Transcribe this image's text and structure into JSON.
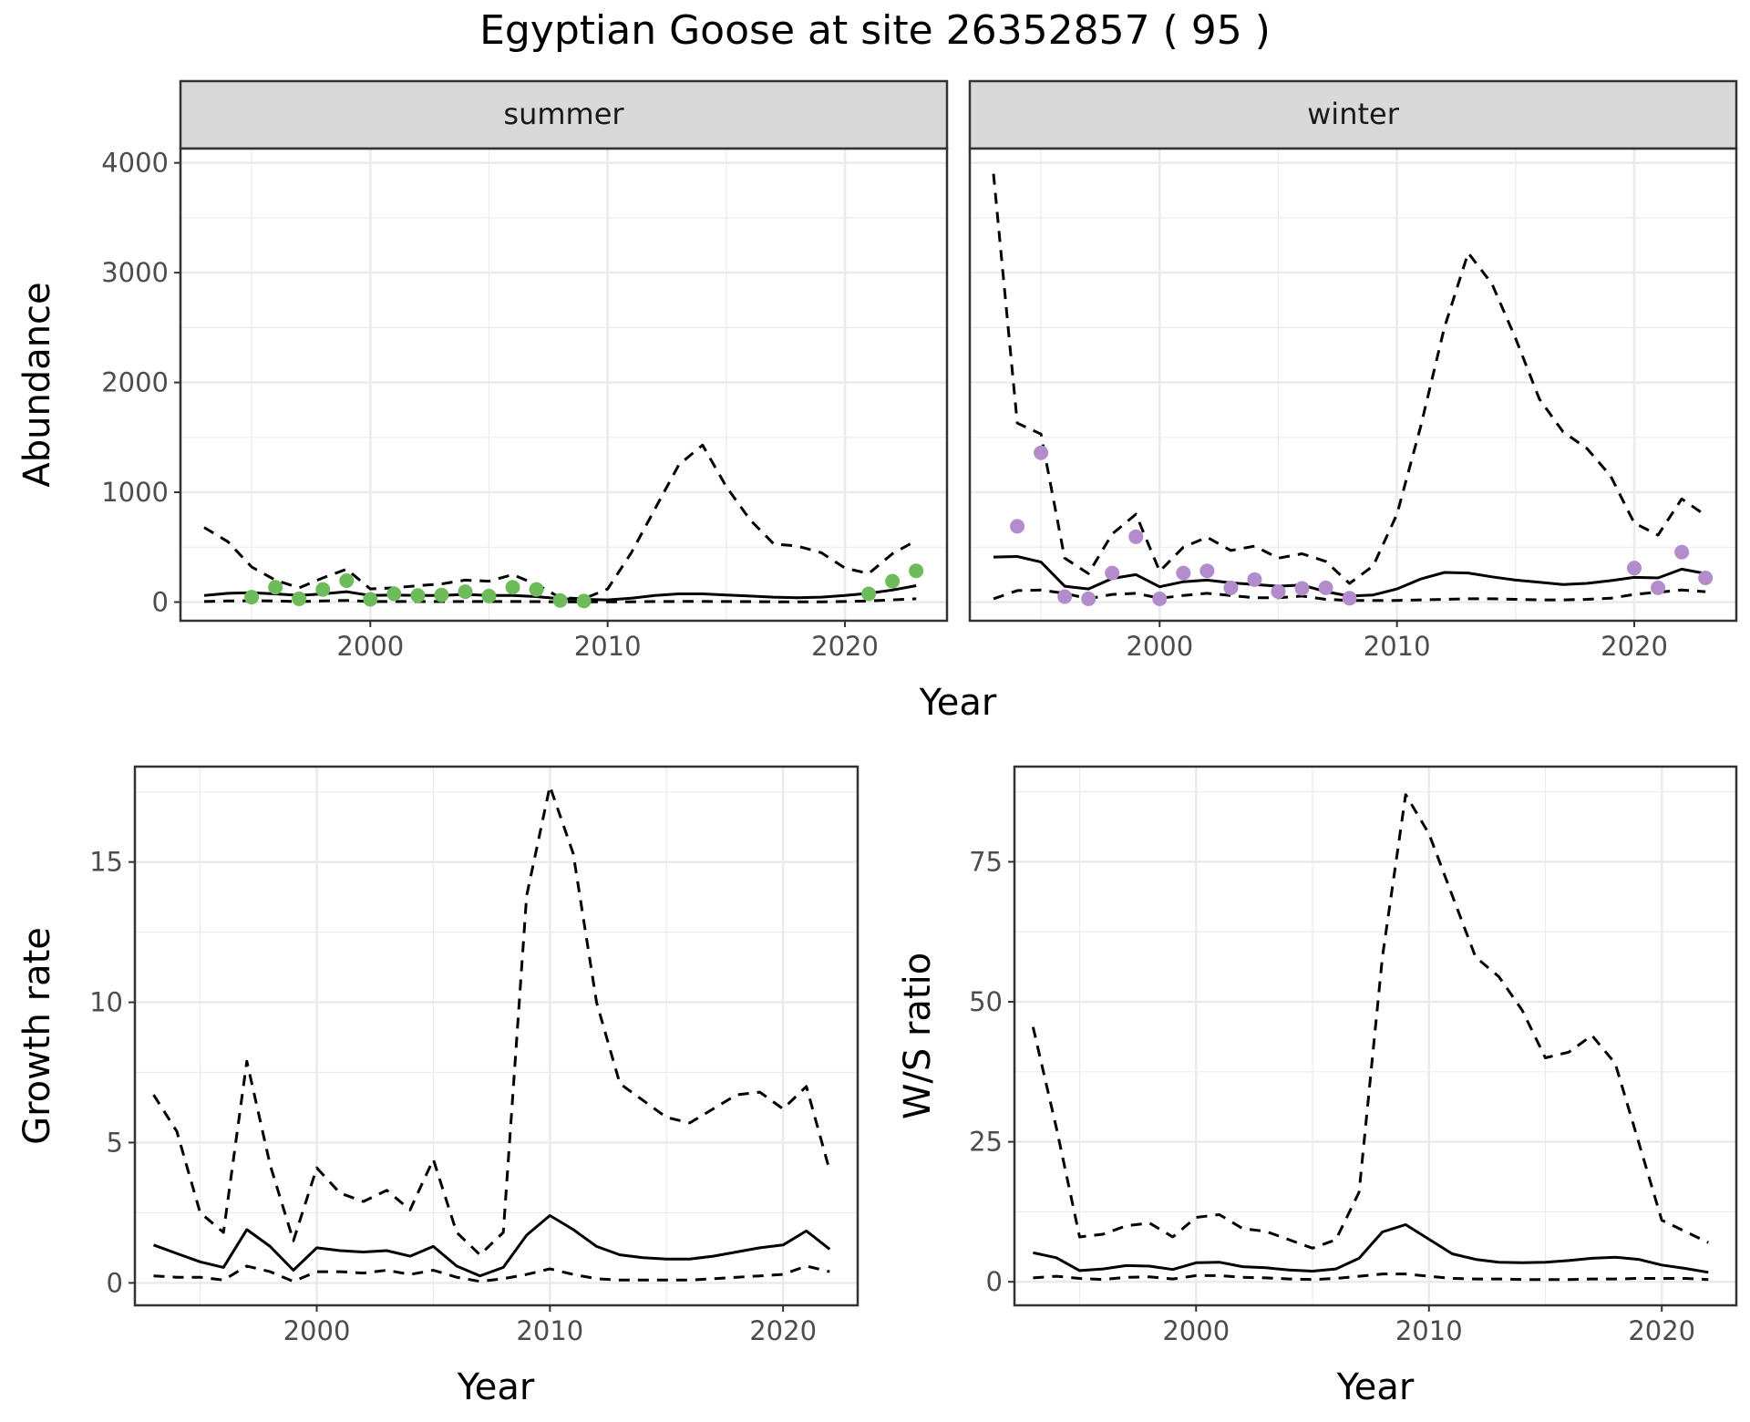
{
  "title": "Egyptian Goose at site 26352857 ( 95 )",
  "colors": {
    "summer_points": "#6dbb5a",
    "winter_points": "#b38ccb",
    "lines": "#000000",
    "strip_bg": "#d9d9d9",
    "grid": "#ebebeb",
    "panel_border": "#333333"
  },
  "chart_data": [
    {
      "type": "line",
      "panel": "abundance",
      "facets": [
        "summer",
        "winter"
      ],
      "xlabel": "Year",
      "ylabel": "Abundance",
      "xlim": [
        1992,
        2024.3
      ],
      "ylim": [
        -170,
        4130
      ],
      "xticks": [
        2000,
        2010,
        2020
      ],
      "yticks": [
        0,
        1000,
        2000,
        3000,
        4000
      ],
      "grid": true,
      "summer": {
        "x": [
          1993,
          1994,
          1995,
          1996,
          1997,
          1998,
          1999,
          2000,
          2001,
          2002,
          2003,
          2004,
          2005,
          2006,
          2007,
          2008,
          2009,
          2010,
          2011,
          2012,
          2013,
          2014,
          2015,
          2016,
          2017,
          2018,
          2019,
          2020,
          2021,
          2022,
          2023
        ],
        "estimate": [
          60,
          80,
          85,
          75,
          60,
          75,
          95,
          60,
          65,
          60,
          60,
          70,
          60,
          60,
          50,
          30,
          25,
          20,
          35,
          60,
          75,
          75,
          65,
          55,
          45,
          40,
          45,
          60,
          80,
          110,
          150
        ],
        "lower": [
          5,
          10,
          12,
          10,
          5,
          10,
          15,
          5,
          5,
          5,
          5,
          5,
          5,
          5,
          4,
          3,
          2,
          2,
          3,
          5,
          6,
          6,
          5,
          4,
          3,
          3,
          3,
          5,
          10,
          20,
          30
        ],
        "upper": [
          680,
          550,
          320,
          200,
          130,
          220,
          300,
          120,
          130,
          150,
          165,
          200,
          190,
          250,
          160,
          40,
          30,
          120,
          450,
          850,
          1250,
          1430,
          1050,
          750,
          530,
          510,
          450,
          310,
          260,
          440,
          560
        ],
        "points": {
          "x": [
            1995,
            1996,
            1997,
            1998,
            1999,
            2000,
            2001,
            2002,
            2003,
            2004,
            2005,
            2006,
            2007,
            2008,
            2009,
            2021,
            2022,
            2023
          ],
          "y": [
            45,
            135,
            30,
            115,
            195,
            25,
            75,
            60,
            65,
            95,
            55,
            135,
            115,
            15,
            10,
            75,
            190,
            285
          ]
        }
      },
      "winter": {
        "x": [
          1993,
          1994,
          1995,
          1996,
          1997,
          1998,
          1999,
          2000,
          2001,
          2002,
          2003,
          2004,
          2005,
          2006,
          2007,
          2008,
          2009,
          2010,
          2011,
          2012,
          2013,
          2014,
          2015,
          2016,
          2017,
          2018,
          2019,
          2020,
          2021,
          2022,
          2023
        ],
        "estimate": [
          410,
          415,
          365,
          145,
          120,
          215,
          250,
          140,
          185,
          200,
          175,
          160,
          145,
          155,
          95,
          55,
          65,
          120,
          210,
          270,
          265,
          230,
          200,
          180,
          160,
          170,
          195,
          225,
          220,
          300,
          260
        ],
        "lower": [
          30,
          105,
          110,
          80,
          30,
          70,
          80,
          35,
          60,
          80,
          60,
          40,
          40,
          55,
          25,
          15,
          15,
          15,
          20,
          25,
          30,
          30,
          25,
          20,
          20,
          25,
          35,
          70,
          90,
          110,
          95
        ],
        "upper": [
          3900,
          1630,
          1530,
          400,
          260,
          620,
          800,
          280,
          500,
          590,
          470,
          510,
          400,
          440,
          370,
          170,
          330,
          800,
          1600,
          2500,
          3180,
          2900,
          2400,
          1850,
          1550,
          1400,
          1150,
          720,
          610,
          940,
          790
        ],
        "points": {
          "x": [
            1994,
            1995,
            1996,
            1997,
            1998,
            1999,
            2000,
            2001,
            2002,
            2003,
            2004,
            2005,
            2006,
            2007,
            2008,
            2020,
            2021,
            2022,
            2023
          ],
          "y": [
            690,
            1360,
            50,
            30,
            265,
            595,
            30,
            265,
            285,
            130,
            205,
            95,
            125,
            130,
            35,
            310,
            130,
            455,
            220
          ]
        }
      }
    },
    {
      "type": "line",
      "panel": "growth",
      "xlabel": "Year",
      "ylabel": "Growth rate",
      "xlim": [
        1992.2,
        2023.2
      ],
      "ylim": [
        -0.8,
        18.4
      ],
      "xticks": [
        2000,
        2010,
        2020
      ],
      "yticks": [
        0,
        5,
        10,
        15
      ],
      "grid": true,
      "x": [
        1993,
        1994,
        1995,
        1996,
        1997,
        1998,
        1999,
        2000,
        2001,
        2002,
        2003,
        2004,
        2005,
        2006,
        2007,
        2008,
        2009,
        2010,
        2011,
        2012,
        2013,
        2014,
        2015,
        2016,
        2017,
        2018,
        2019,
        2020,
        2021,
        2022
      ],
      "estimate": [
        1.35,
        1.05,
        0.75,
        0.55,
        1.9,
        1.3,
        0.45,
        1.25,
        1.15,
        1.1,
        1.15,
        0.95,
        1.3,
        0.6,
        0.25,
        0.55,
        1.7,
        2.4,
        1.9,
        1.3,
        1.0,
        0.9,
        0.85,
        0.85,
        0.95,
        1.1,
        1.25,
        1.35,
        1.85,
        1.2
      ],
      "lower": [
        0.25,
        0.2,
        0.2,
        0.1,
        0.6,
        0.4,
        0.05,
        0.4,
        0.4,
        0.35,
        0.45,
        0.3,
        0.45,
        0.2,
        0.05,
        0.15,
        0.3,
        0.5,
        0.3,
        0.15,
        0.1,
        0.1,
        0.1,
        0.1,
        0.15,
        0.2,
        0.25,
        0.3,
        0.6,
        0.4
      ],
      "upper": [
        6.7,
        5.4,
        2.5,
        1.8,
        7.9,
        4.2,
        1.5,
        4.1,
        3.2,
        2.9,
        3.3,
        2.6,
        4.4,
        1.8,
        1.0,
        1.8,
        13.8,
        17.7,
        15.3,
        10.0,
        7.1,
        6.5,
        5.9,
        5.7,
        6.2,
        6.7,
        6.8,
        6.2,
        7.0,
        4.0
      ]
    },
    {
      "type": "line",
      "panel": "ws_ratio",
      "xlabel": "Year",
      "ylabel": "W/S ratio",
      "xlim": [
        1992.2,
        2023.2
      ],
      "ylim": [
        -4.2,
        92
      ],
      "xticks": [
        2000,
        2010,
        2020
      ],
      "yticks": [
        0,
        25,
        50,
        75
      ],
      "grid": true,
      "x": [
        1993,
        1994,
        1995,
        1996,
        1997,
        1998,
        1999,
        2000,
        2001,
        2002,
        2003,
        2004,
        2005,
        2006,
        2007,
        2008,
        2009,
        2010,
        2011,
        2012,
        2013,
        2014,
        2015,
        2016,
        2017,
        2018,
        2019,
        2020,
        2021,
        2022
      ],
      "estimate": [
        5.2,
        4.3,
        2.0,
        2.3,
        2.9,
        2.8,
        2.2,
        3.4,
        3.5,
        2.7,
        2.5,
        2.1,
        1.9,
        2.3,
        4.2,
        8.9,
        10.2,
        7.6,
        5.0,
        4.0,
        3.5,
        3.4,
        3.5,
        3.8,
        4.2,
        4.4,
        4.0,
        3.0,
        2.4,
        1.7
      ],
      "lower": [
        0.7,
        1.0,
        0.6,
        0.4,
        0.8,
        0.9,
        0.5,
        1.1,
        1.1,
        0.8,
        0.7,
        0.5,
        0.4,
        0.6,
        1.0,
        1.4,
        1.4,
        1.0,
        0.6,
        0.5,
        0.5,
        0.4,
        0.4,
        0.4,
        0.5,
        0.5,
        0.6,
        0.6,
        0.6,
        0.4
      ],
      "upper": [
        45.5,
        27.5,
        8.0,
        8.5,
        10.0,
        10.5,
        8.0,
        11.5,
        12.0,
        9.5,
        9.0,
        7.5,
        6.0,
        7.5,
        16.0,
        58.0,
        87.0,
        80.0,
        69.0,
        58.0,
        54.5,
        48.5,
        40.0,
        41.0,
        44.0,
        39.0,
        25.0,
        11.0,
        9.0,
        7.0
      ]
    }
  ]
}
